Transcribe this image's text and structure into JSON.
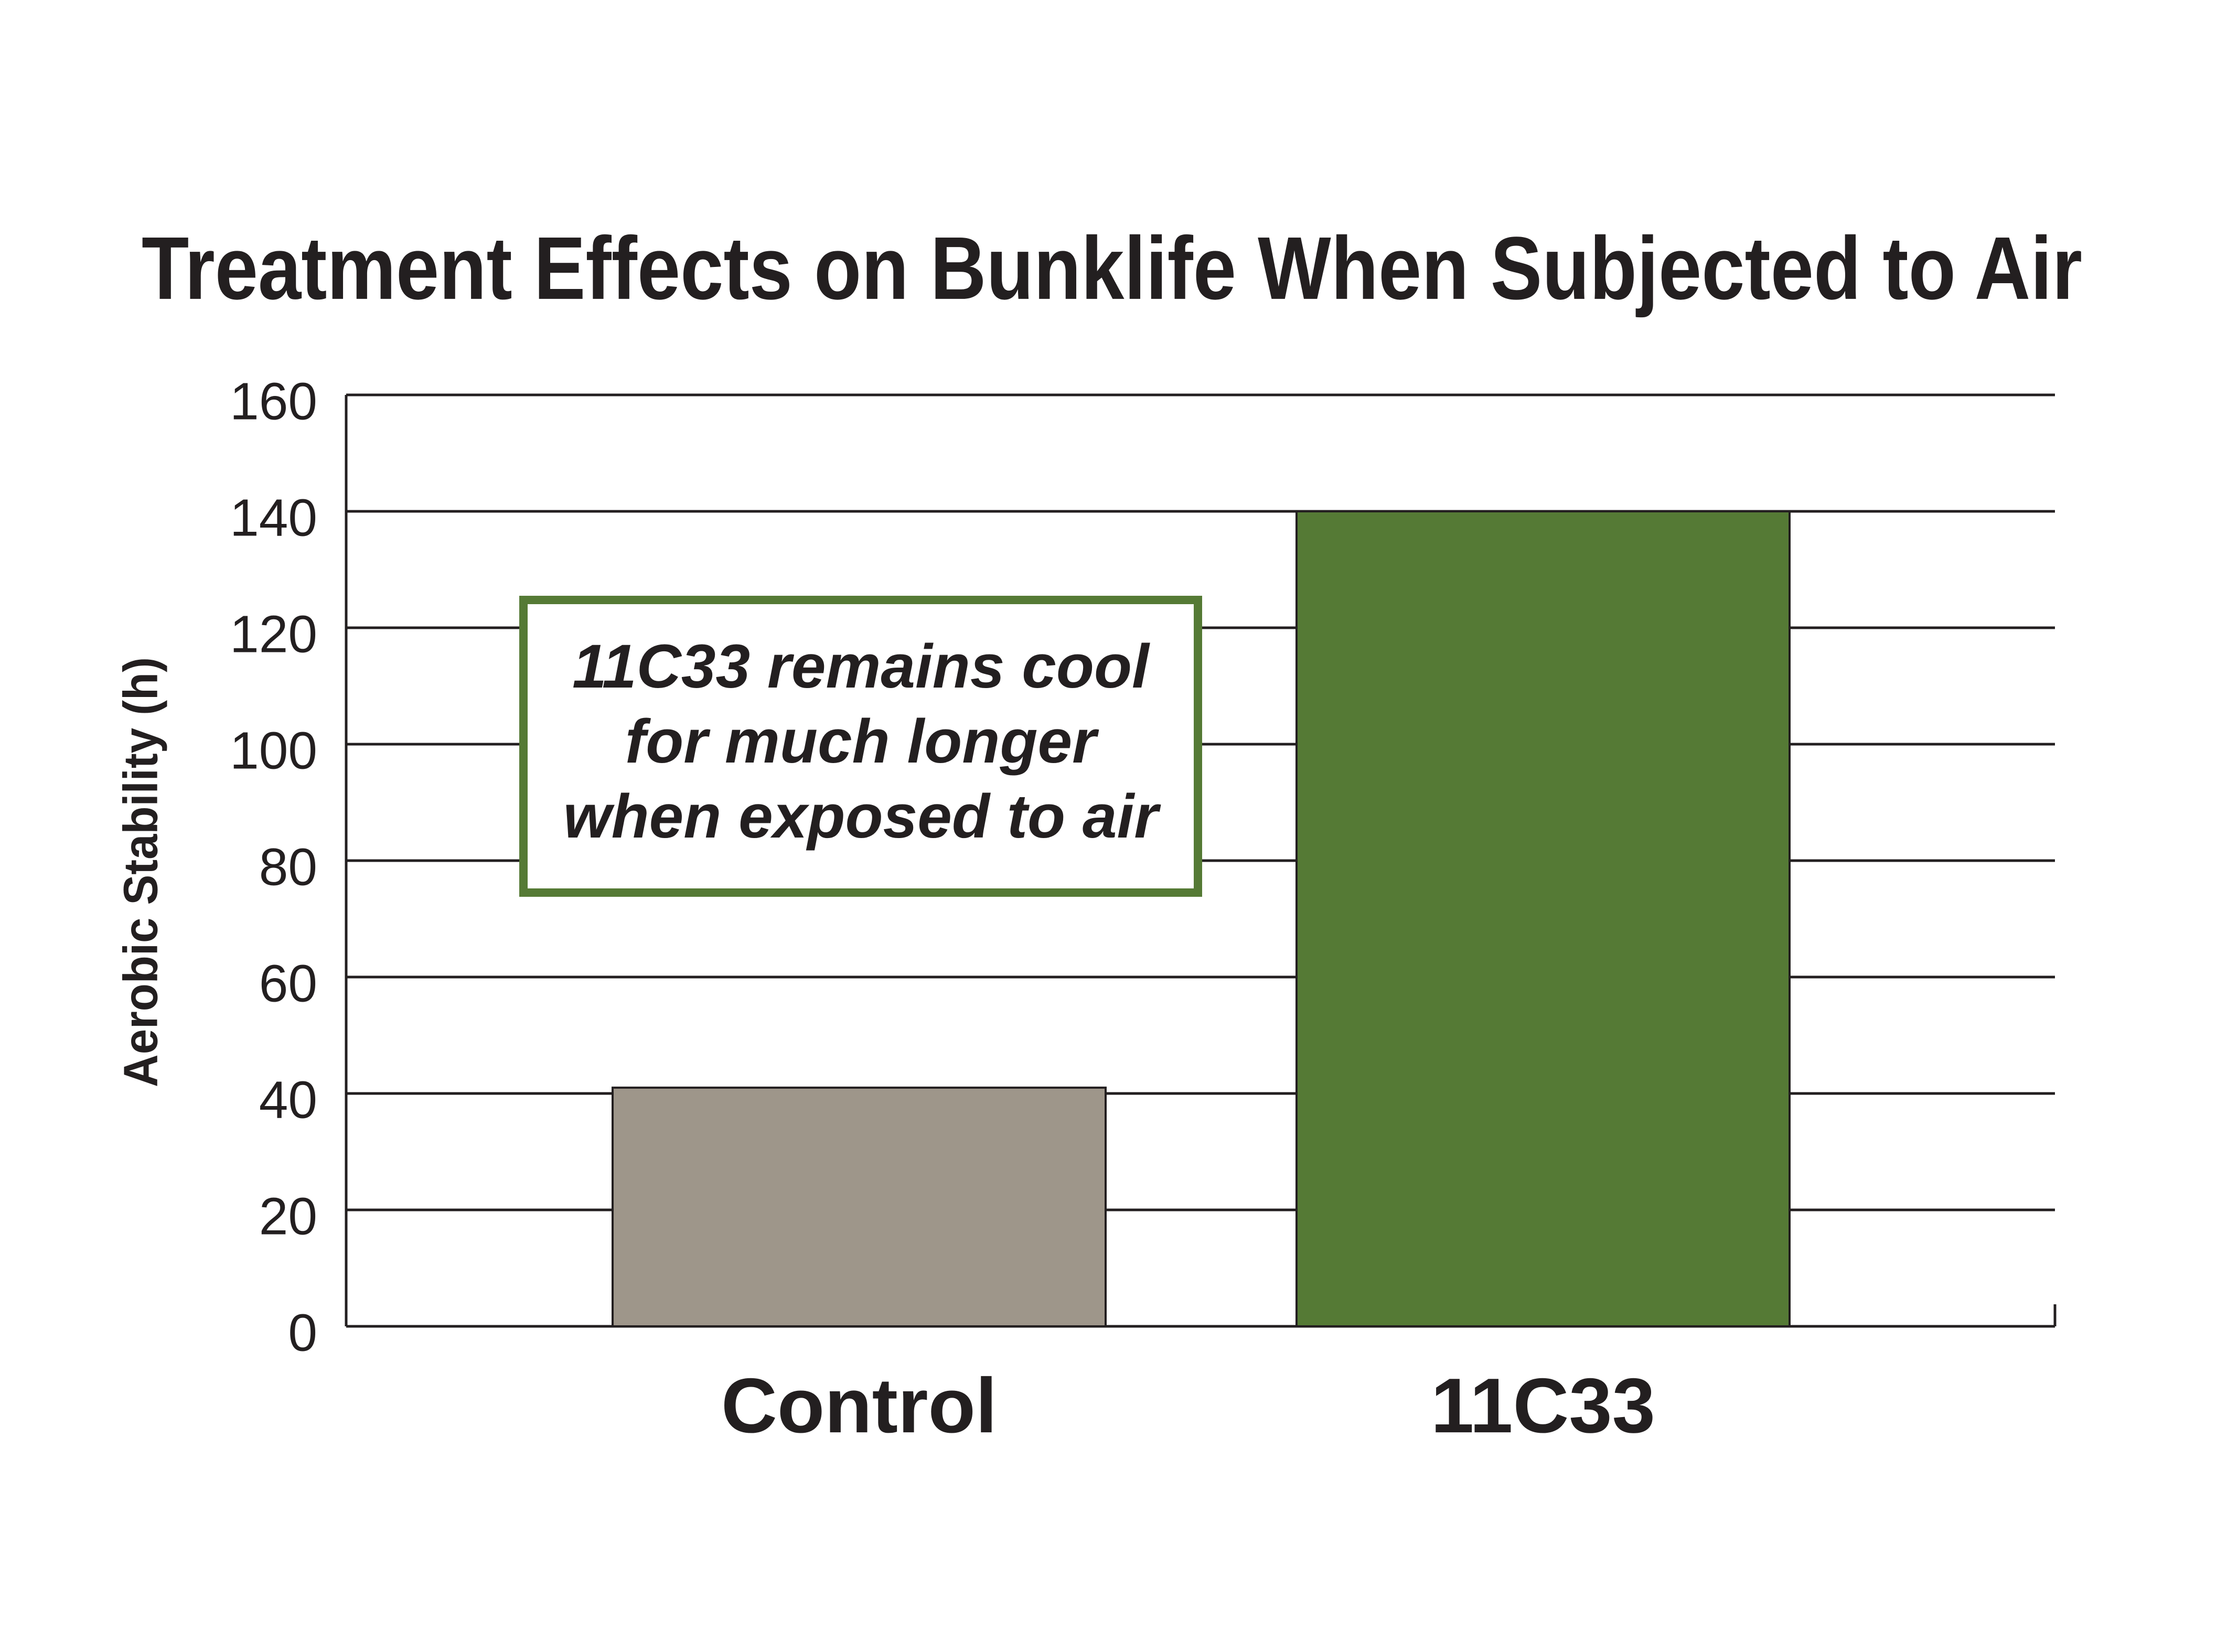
{
  "chart_data": {
    "type": "bar",
    "title": "Treatment Effects on Bunklife When Subjected to Air",
    "y_label": "Aerobic Stability (h)",
    "categories": [
      "Control",
      "11C33"
    ],
    "values": [
      41,
      140
    ],
    "colors": [
      "#9e968a",
      "#557a35"
    ],
    "ylim": [
      0,
      160
    ],
    "yticks": [
      0,
      20,
      40,
      60,
      80,
      100,
      120,
      140,
      160
    ],
    "grid": true,
    "annotation": [
      "11C33 remains cool",
      "for much longer",
      "when exposed to air"
    ]
  }
}
